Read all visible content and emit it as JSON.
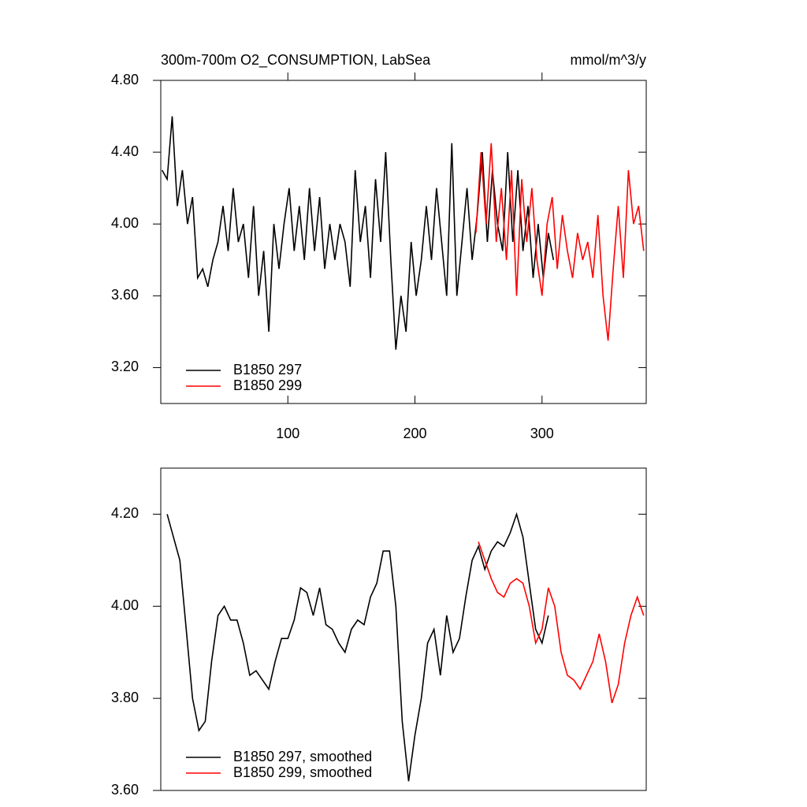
{
  "chart_data": [
    {
      "type": "line",
      "title": "300m-700m O2_CONSUMPTION, LabSea",
      "units": "mmol/m^3/y",
      "xlim": [
        0,
        382
      ],
      "xticks": [
        100,
        200,
        300
      ],
      "ylim": [
        3.0,
        4.8
      ],
      "yticks": [
        {
          "value": 3.2,
          "label": "3.20"
        },
        {
          "value": 3.6,
          "label": "3.60"
        },
        {
          "value": 4.0,
          "label": "4.00"
        },
        {
          "value": 4.4,
          "label": "4.40"
        },
        {
          "value": 4.8,
          "label": "4.80"
        }
      ],
      "legend": "lower left",
      "series": [
        {
          "name": "B1850 297",
          "color": "#000000",
          "x": [
            1,
            5,
            9,
            13,
            17,
            21,
            25,
            29,
            33,
            37,
            41,
            45,
            49,
            53,
            57,
            61,
            65,
            69,
            73,
            77,
            81,
            85,
            89,
            93,
            97,
            101,
            105,
            109,
            113,
            117,
            121,
            125,
            129,
            133,
            137,
            141,
            145,
            149,
            153,
            157,
            161,
            165,
            169,
            173,
            177,
            181,
            185,
            189,
            193,
            197,
            201,
            205,
            209,
            213,
            217,
            221,
            225,
            229,
            233,
            237,
            241,
            245,
            249,
            253,
            257,
            261,
            265,
            269,
            273,
            277,
            281,
            285,
            289,
            293,
            297,
            301,
            305,
            309
          ],
          "values": [
            4.3,
            4.25,
            4.6,
            4.1,
            4.3,
            4.0,
            4.15,
            3.7,
            3.75,
            3.65,
            3.8,
            3.9,
            4.1,
            3.85,
            4.2,
            3.9,
            4.0,
            3.7,
            4.1,
            3.6,
            3.85,
            3.4,
            4.0,
            3.75,
            4.0,
            4.2,
            3.85,
            4.1,
            3.8,
            4.2,
            3.85,
            4.15,
            3.75,
            4.0,
            3.8,
            4.0,
            3.9,
            3.65,
            4.3,
            3.9,
            4.1,
            3.7,
            4.25,
            3.9,
            4.4,
            3.8,
            3.3,
            3.6,
            3.4,
            3.9,
            3.6,
            3.8,
            4.1,
            3.8,
            4.2,
            3.9,
            3.6,
            4.45,
            3.6,
            3.9,
            4.2,
            3.8,
            4.05,
            4.4,
            3.9,
            4.3,
            4.0,
            3.85,
            4.4,
            3.9,
            4.3,
            3.85,
            4.1,
            3.7,
            4.0,
            3.7,
            3.95,
            3.8
          ]
        },
        {
          "name": "B1850 299",
          "color": "#ff0000",
          "x": [
            248,
            252,
            256,
            260,
            264,
            268,
            272,
            276,
            280,
            284,
            288,
            292,
            296,
            300,
            304,
            308,
            312,
            316,
            320,
            324,
            328,
            332,
            336,
            340,
            344,
            348,
            352,
            356,
            360,
            364,
            368,
            372,
            376,
            380
          ],
          "values": [
            3.95,
            4.4,
            4.0,
            4.45,
            3.9,
            4.2,
            3.8,
            4.3,
            3.6,
            4.25,
            3.9,
            4.2,
            3.8,
            3.6,
            4.0,
            4.15,
            3.75,
            4.05,
            3.85,
            3.7,
            3.95,
            3.8,
            3.9,
            3.7,
            4.05,
            3.6,
            3.35,
            3.75,
            4.1,
            3.7,
            4.3,
            4.0,
            4.1,
            3.85
          ]
        }
      ]
    },
    {
      "type": "line",
      "xlim": [
        0,
        382
      ],
      "ylim": [
        3.6,
        4.3
      ],
      "yticks": [
        {
          "value": 3.6,
          "label": "3.60"
        },
        {
          "value": 3.8,
          "label": "3.80"
        },
        {
          "value": 4.0,
          "label": "4.00"
        },
        {
          "value": 4.2,
          "label": "4.20"
        }
      ],
      "legend": "lower left",
      "series": [
        {
          "name": "B1850 297, smoothed",
          "color": "#000000",
          "x": [
            5,
            10,
            15,
            20,
            25,
            30,
            35,
            40,
            45,
            50,
            55,
            60,
            65,
            70,
            75,
            80,
            85,
            90,
            95,
            100,
            105,
            110,
            115,
            120,
            125,
            130,
            135,
            140,
            145,
            150,
            155,
            160,
            165,
            170,
            175,
            180,
            185,
            190,
            195,
            200,
            205,
            210,
            215,
            220,
            225,
            230,
            235,
            240,
            245,
            250,
            255,
            260,
            265,
            270,
            275,
            280,
            285,
            290,
            295,
            300,
            305
          ],
          "values": [
            4.2,
            4.15,
            4.1,
            3.95,
            3.8,
            3.73,
            3.75,
            3.88,
            3.98,
            4.0,
            3.97,
            3.97,
            3.92,
            3.85,
            3.86,
            3.84,
            3.82,
            3.88,
            3.93,
            3.93,
            3.97,
            4.04,
            4.03,
            3.98,
            4.04,
            3.96,
            3.95,
            3.92,
            3.9,
            3.95,
            3.97,
            3.96,
            4.02,
            4.05,
            4.12,
            4.12,
            4.0,
            3.75,
            3.62,
            3.72,
            3.8,
            3.92,
            3.95,
            3.85,
            3.98,
            3.9,
            3.93,
            4.02,
            4.1,
            4.13,
            4.08,
            4.12,
            4.14,
            4.13,
            4.16,
            4.2,
            4.15,
            4.05,
            3.95,
            3.92,
            3.98
          ]
        },
        {
          "name": "B1850 299, smoothed",
          "color": "#ff0000",
          "x": [
            250,
            255,
            260,
            265,
            270,
            275,
            280,
            285,
            290,
            295,
            300,
            305,
            310,
            315,
            320,
            325,
            330,
            335,
            340,
            345,
            350,
            355,
            360,
            365,
            370,
            375,
            380
          ],
          "values": [
            4.14,
            4.1,
            4.06,
            4.03,
            4.02,
            4.05,
            4.06,
            4.05,
            4.0,
            3.92,
            3.95,
            4.04,
            4.0,
            3.9,
            3.85,
            3.84,
            3.82,
            3.85,
            3.88,
            3.94,
            3.88,
            3.79,
            3.83,
            3.92,
            3.98,
            4.02,
            3.98
          ]
        }
      ]
    }
  ]
}
